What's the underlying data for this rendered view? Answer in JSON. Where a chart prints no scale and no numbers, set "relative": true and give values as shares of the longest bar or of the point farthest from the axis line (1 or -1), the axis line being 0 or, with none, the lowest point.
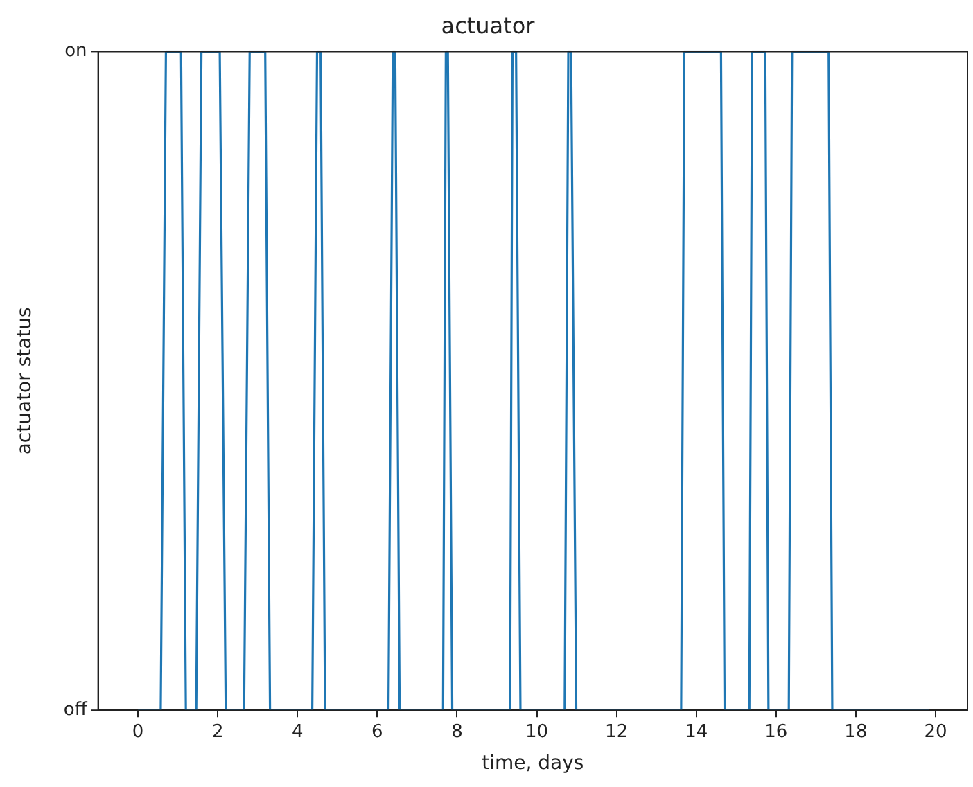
{
  "chart_data": {
    "type": "line",
    "title": "actuator",
    "xlabel": "time, days",
    "ylabel": "actuator status",
    "x": [
      0,
      0.57,
      0.7,
      1.08,
      1.2,
      1.46,
      1.59,
      2.05,
      2.2,
      2.66,
      2.8,
      3.19,
      3.31,
      4.37,
      4.49,
      4.58,
      4.69,
      6.28,
      6.39,
      6.45,
      6.56,
      7.65,
      7.72,
      7.77,
      7.88,
      9.33,
      9.39,
      9.48,
      9.59,
      10.7,
      10.79,
      10.86,
      10.99,
      13.62,
      13.7,
      14.62,
      14.71,
      15.33,
      15.4,
      15.73,
      15.81,
      16.32,
      16.4,
      17.32,
      17.41,
      19.84
    ],
    "series": [
      {
        "color": "#1f77b4",
        "values": [
          0,
          0,
          1,
          1,
          0,
          0,
          1,
          1,
          0,
          0,
          1,
          1,
          0,
          0,
          1,
          1,
          0,
          0,
          1,
          1,
          0,
          0,
          1,
          1,
          0,
          0,
          1,
          1,
          0,
          0,
          1,
          1,
          0,
          0,
          1,
          1,
          0,
          0,
          1,
          1,
          0,
          0,
          1,
          1,
          0,
          0
        ]
      }
    ],
    "xlim": [
      -1,
      20.8
    ],
    "xticks": [
      0,
      2,
      4,
      6,
      8,
      10,
      12,
      14,
      16,
      18,
      20
    ],
    "relative": true,
    "annotations": [
      "off",
      "on"
    ],
    "grid": false,
    "legend": false,
    "marker": "none",
    "line_style": "solid"
  }
}
